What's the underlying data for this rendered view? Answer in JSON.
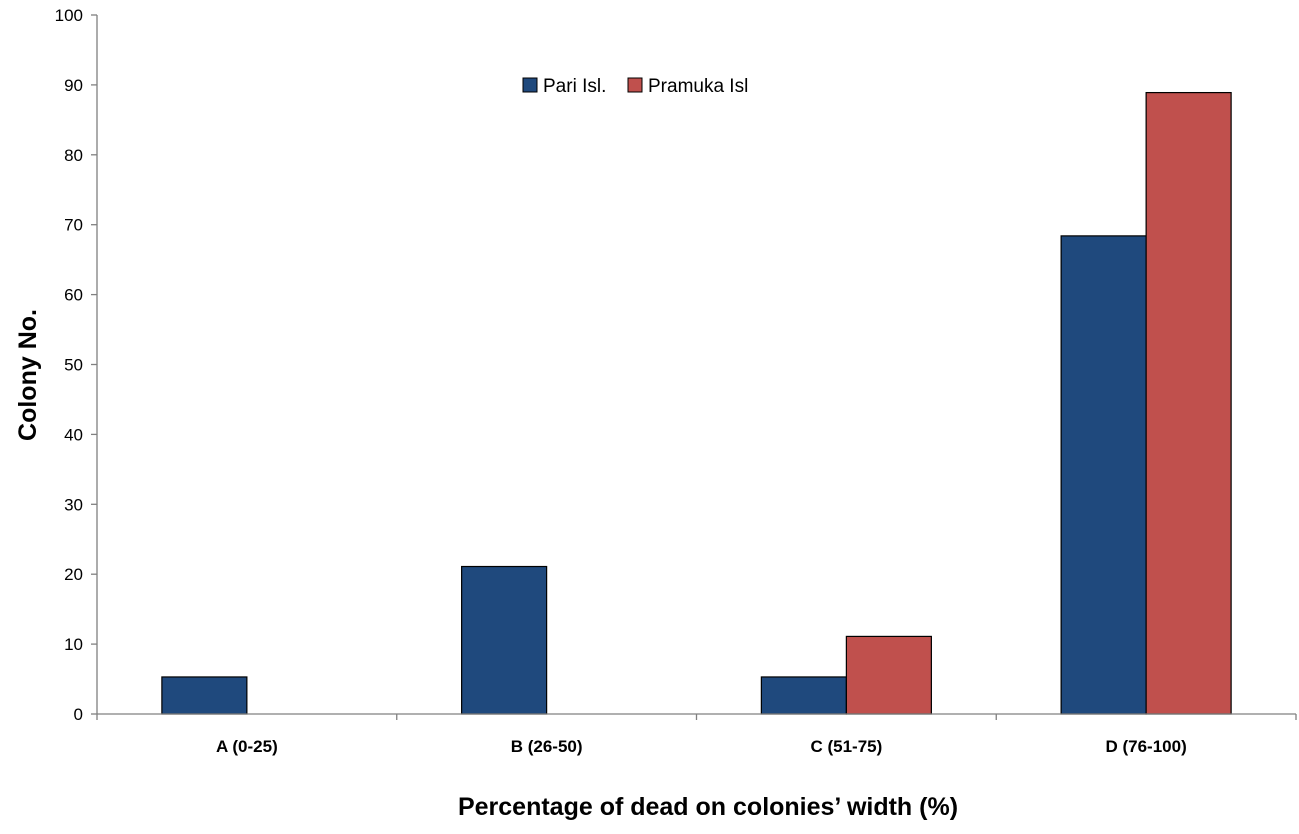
{
  "chart_data": {
    "type": "bar",
    "title": "",
    "xlabel": "Percentage of dead on colonies’ width (%)",
    "ylabel": "Colony No.",
    "ylim": [
      0,
      100
    ],
    "yticks": [
      0,
      10,
      20,
      30,
      40,
      50,
      60,
      70,
      80,
      90,
      100
    ],
    "grid": false,
    "legend_position": "top-center",
    "categories": [
      "A (0-25)",
      "B (26-50)",
      "C (51-75)",
      "D (76-100)"
    ],
    "series": [
      {
        "name": "Pari Isl.",
        "color": "#1f497d",
        "values": [
          5.3,
          21.1,
          5.3,
          68.4
        ]
      },
      {
        "name": "Pramuka Isl",
        "color": "#c0504d",
        "values": [
          0,
          0,
          11.1,
          88.9
        ]
      }
    ]
  }
}
